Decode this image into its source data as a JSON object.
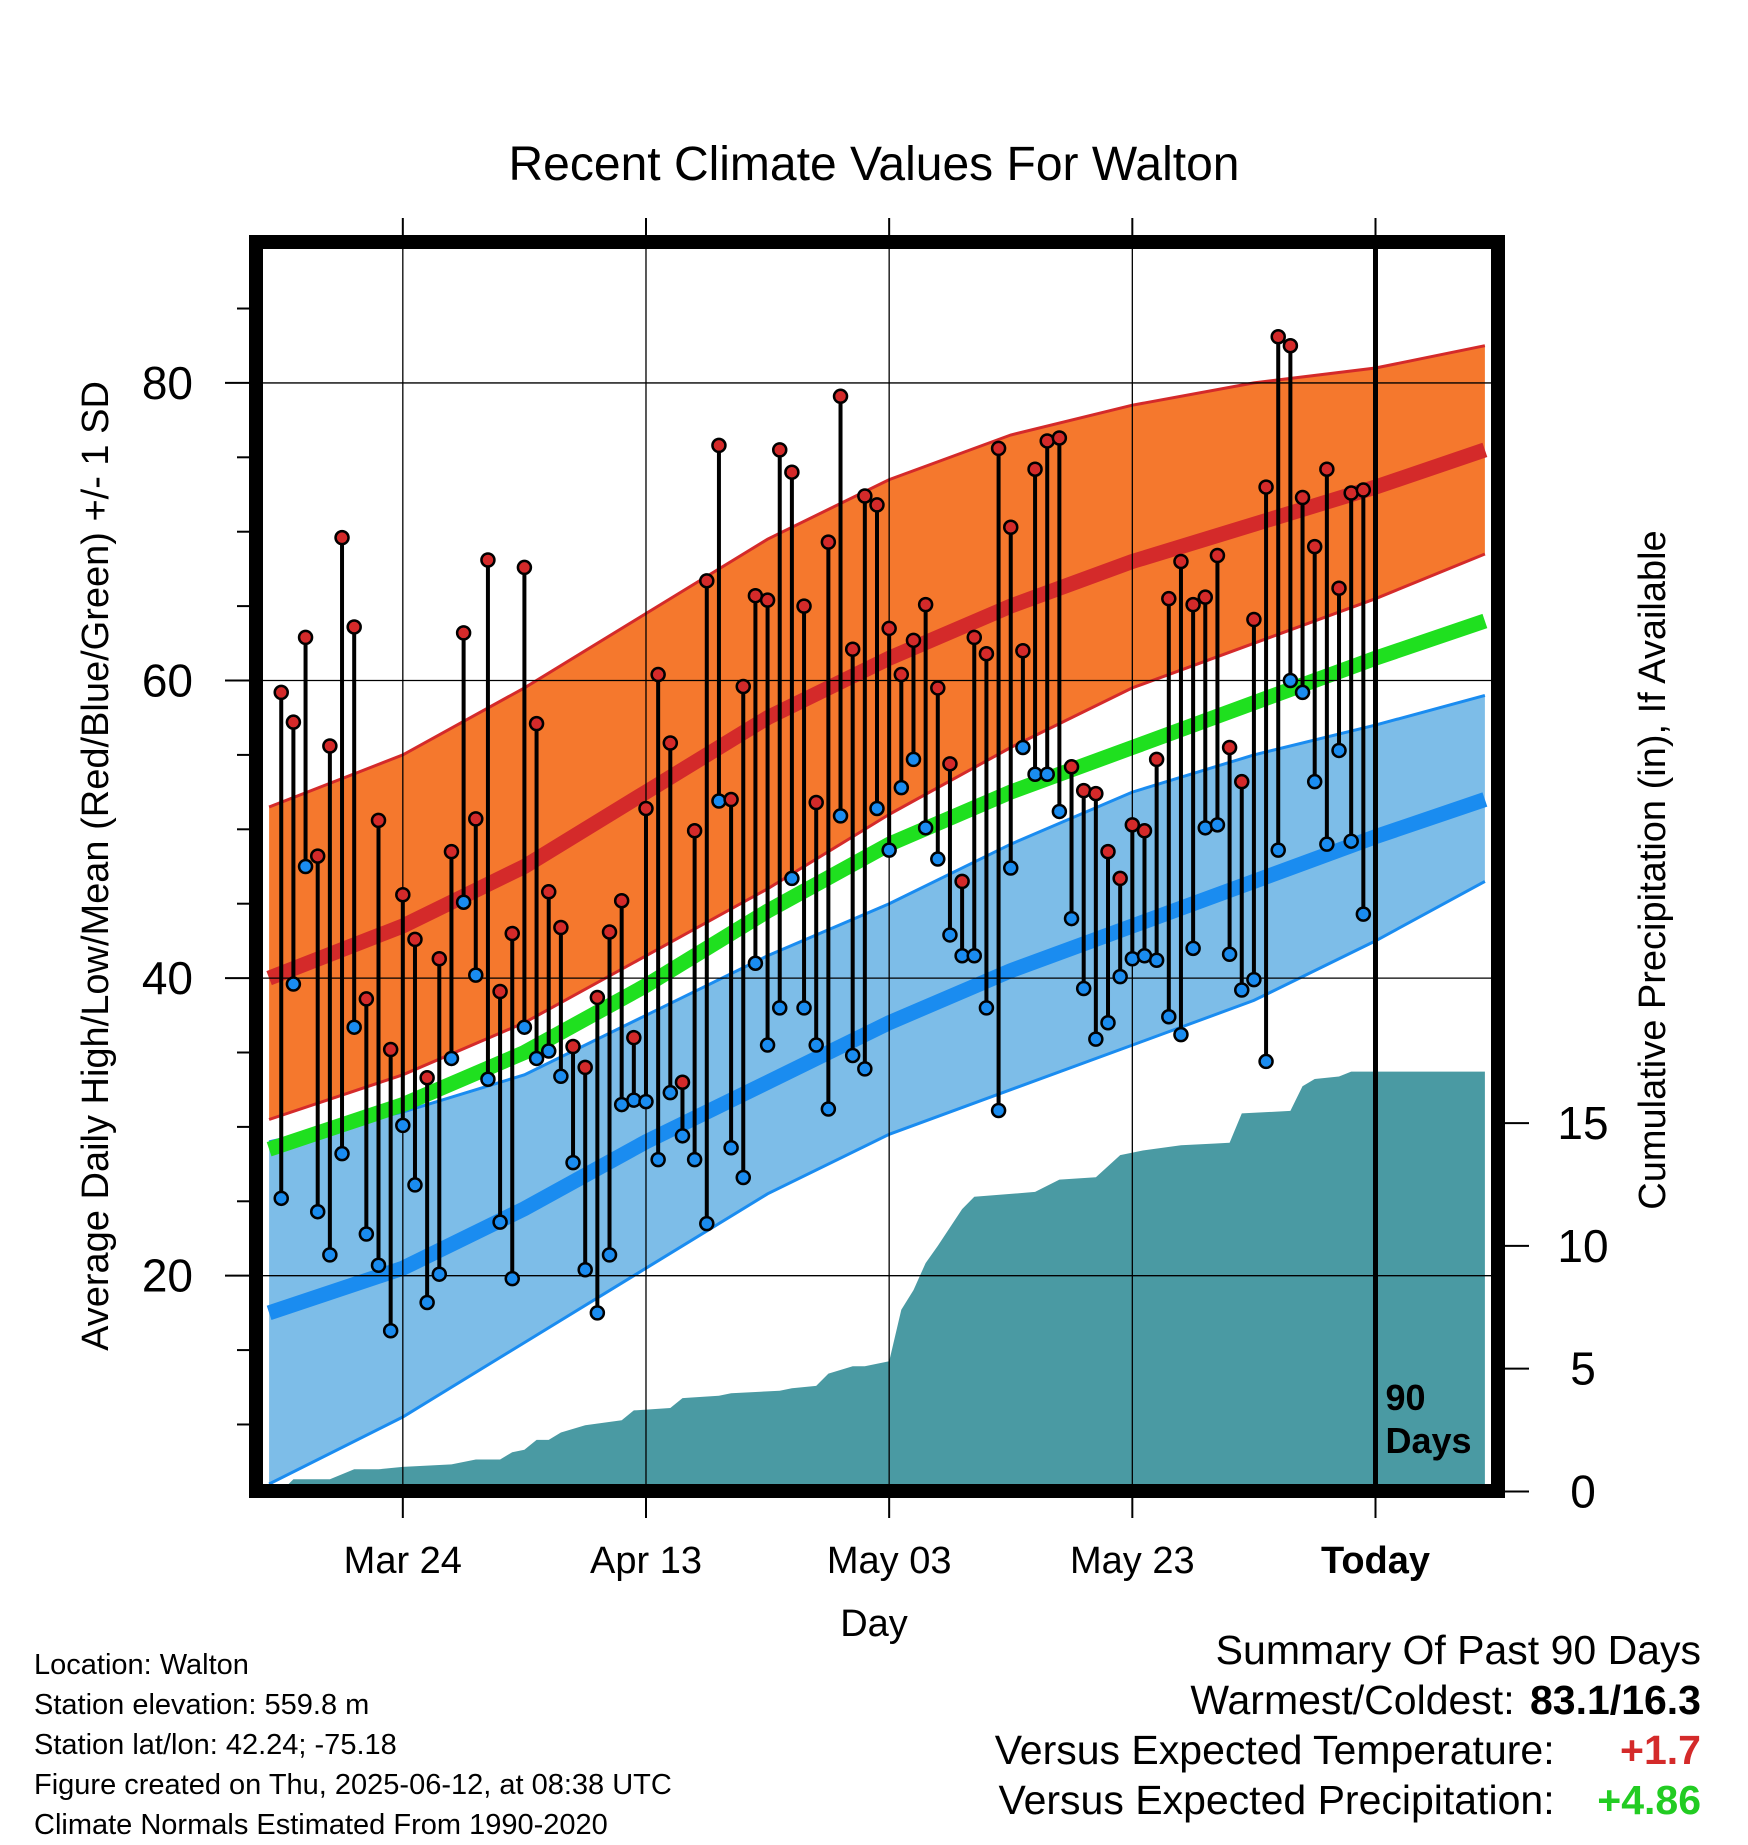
{
  "chart_data": {
    "type": "line",
    "title": "Recent Climate Values For Walton",
    "xlabel": "Day",
    "ylabel": "Average Daily High/Low/Mean (Red/Blue/Green) +/- 1 SD",
    "y2label": "Cumulative Precipitation (in), If Available",
    "ylim": [
      6,
      89
    ],
    "y2lim": [
      0,
      45
    ],
    "yticks": [
      20,
      40,
      60,
      80
    ],
    "y2ticks": [
      0,
      5,
      10,
      15
    ],
    "x_tick_labels": [
      "Mar 24",
      "Apr 13",
      "May 03",
      "May 23",
      "Today"
    ],
    "x_tick_days": [
      -80,
      -60,
      -40,
      -20,
      0
    ],
    "xlim": [
      -91.5,
      9.5
    ],
    "start_date": "2025-03-13",
    "today_marker_label": [
      "90",
      "Days"
    ],
    "grid": true,
    "normals": {
      "high_mean": [
        [
          -91,
          40.0
        ],
        [
          -80,
          43.5
        ],
        [
          -70,
          47.5
        ],
        [
          -60,
          52.5
        ],
        [
          -50,
          57.5
        ],
        [
          -40,
          61.5
        ],
        [
          -30,
          65.0
        ],
        [
          -20,
          68.0
        ],
        [
          -10,
          70.5
        ],
        [
          0,
          73.0
        ],
        [
          9,
          75.5
        ]
      ],
      "high_upper": [
        [
          -91,
          51.5
        ],
        [
          -80,
          55.0
        ],
        [
          -70,
          59.5
        ],
        [
          -60,
          64.5
        ],
        [
          -50,
          69.5
        ],
        [
          -40,
          73.5
        ],
        [
          -30,
          76.5
        ],
        [
          -20,
          78.5
        ],
        [
          -10,
          80.0
        ],
        [
          0,
          81.0
        ],
        [
          9,
          82.5
        ]
      ],
      "high_lower": [
        [
          -91,
          30.5
        ],
        [
          -80,
          33.5
        ],
        [
          -70,
          37.0
        ],
        [
          -60,
          41.5
        ],
        [
          -50,
          46.0
        ],
        [
          -40,
          51.0
        ],
        [
          -30,
          55.5
        ],
        [
          -20,
          59.5
        ],
        [
          -10,
          62.5
        ],
        [
          0,
          65.5
        ],
        [
          9,
          68.5
        ]
      ],
      "mean": [
        [
          -91,
          28.5
        ],
        [
          -80,
          31.5
        ],
        [
          -70,
          35.0
        ],
        [
          -60,
          39.5
        ],
        [
          -50,
          44.5
        ],
        [
          -40,
          49.0
        ],
        [
          -30,
          52.5
        ],
        [
          -20,
          55.5
        ],
        [
          -10,
          58.5
        ],
        [
          0,
          61.5
        ],
        [
          9,
          64.0
        ]
      ],
      "low_mean": [
        [
          -91,
          17.5
        ],
        [
          -80,
          20.5
        ],
        [
          -70,
          24.5
        ],
        [
          -60,
          29.0
        ],
        [
          -50,
          33.0
        ],
        [
          -40,
          37.0
        ],
        [
          -30,
          40.5
        ],
        [
          -20,
          43.5
        ],
        [
          -10,
          46.5
        ],
        [
          0,
          49.5
        ],
        [
          9,
          52.0
        ]
      ],
      "low_upper": [
        [
          -91,
          29.0
        ],
        [
          -80,
          31.0
        ],
        [
          -70,
          33.5
        ],
        [
          -60,
          37.5
        ],
        [
          -50,
          41.5
        ],
        [
          -40,
          45.0
        ],
        [
          -30,
          49.0
        ],
        [
          -20,
          52.5
        ],
        [
          -10,
          55.0
        ],
        [
          0,
          57.0
        ],
        [
          9,
          59.0
        ]
      ],
      "low_lower": [
        [
          -91,
          6.0
        ],
        [
          -80,
          10.5
        ],
        [
          -70,
          15.5
        ],
        [
          -60,
          20.5
        ],
        [
          -50,
          25.5
        ],
        [
          -40,
          29.5
        ],
        [
          -30,
          32.5
        ],
        [
          -20,
          35.5
        ],
        [
          -10,
          38.5
        ],
        [
          0,
          42.5
        ],
        [
          9,
          46.5
        ]
      ]
    },
    "series": [
      {
        "name": "Daily High",
        "color": "#d42a2a",
        "values": [
          59.2,
          57.2,
          62.9,
          48.2,
          55.6,
          69.6,
          63.6,
          38.6,
          50.6,
          35.2,
          45.6,
          42.6,
          33.3,
          41.3,
          48.5,
          63.2,
          50.7,
          68.1,
          39.1,
          43.0,
          67.6,
          57.1,
          45.8,
          43.4,
          35.4,
          34.0,
          38.7,
          43.1,
          45.2,
          36.0,
          51.4,
          60.4,
          55.8,
          33.0,
          49.9,
          66.7,
          75.8,
          52.0,
          59.6,
          65.7,
          65.4,
          75.5,
          74.0,
          65.0,
          51.8,
          69.3,
          79.1,
          62.1,
          72.4,
          71.8,
          63.5,
          60.4,
          62.7,
          65.1,
          59.5,
          54.4,
          46.5,
          62.9,
          61.8,
          75.6,
          70.3,
          62.0,
          74.2,
          76.1,
          76.3,
          54.2,
          52.6,
          52.4,
          48.5,
          46.7,
          50.3,
          49.9,
          54.7,
          65.5,
          68.0,
          65.1,
          65.6,
          68.4,
          55.5,
          53.2,
          64.1,
          73.0,
          83.1,
          82.5,
          72.3,
          69.0,
          74.2,
          66.2,
          72.6,
          72.8
        ]
      },
      {
        "name": "Daily Low",
        "color": "#1a8cf0",
        "values": [
          25.2,
          39.6,
          47.5,
          24.3,
          21.4,
          28.2,
          36.7,
          22.8,
          20.7,
          16.3,
          30.1,
          26.1,
          18.2,
          20.1,
          34.6,
          45.1,
          40.2,
          33.2,
          23.6,
          19.8,
          36.7,
          34.6,
          35.1,
          33.4,
          27.6,
          20.4,
          17.5,
          21.4,
          31.5,
          31.8,
          31.7,
          27.8,
          32.3,
          29.4,
          27.8,
          23.5,
          51.9,
          28.6,
          26.6,
          41.0,
          35.5,
          38.0,
          46.7,
          38.0,
          35.5,
          31.2,
          50.9,
          34.8,
          33.9,
          51.4,
          48.6,
          52.8,
          54.7,
          50.1,
          48.0,
          42.9,
          41.5,
          41.5,
          38.0,
          31.1,
          47.4,
          55.5,
          53.7,
          53.7,
          51.2,
          44.0,
          39.3,
          35.9,
          37.0,
          40.1,
          41.3,
          41.5,
          41.2,
          37.4,
          36.2,
          42.0,
          50.1,
          50.3,
          41.6,
          39.2,
          39.9,
          34.4,
          48.6,
          60.0,
          59.2,
          53.2,
          49.0,
          55.3,
          49.2,
          44.3
        ]
      }
    ],
    "precipitation_cumulative": [
      [
        -91,
        0.0
      ],
      [
        -90,
        0.0
      ],
      [
        -89,
        0.5
      ],
      [
        -86,
        0.5
      ],
      [
        -84,
        0.9
      ],
      [
        -82,
        0.9
      ],
      [
        -80,
        1.0
      ],
      [
        -76,
        1.1
      ],
      [
        -74,
        1.3
      ],
      [
        -72,
        1.3
      ],
      [
        -71,
        1.6
      ],
      [
        -70,
        1.7
      ],
      [
        -69,
        2.1
      ],
      [
        -68,
        2.1
      ],
      [
        -67,
        2.4
      ],
      [
        -65,
        2.7
      ],
      [
        -62,
        2.9
      ],
      [
        -61,
        3.3
      ],
      [
        -58,
        3.4
      ],
      [
        -57,
        3.8
      ],
      [
        -54,
        3.9
      ],
      [
        -53,
        4.0
      ],
      [
        -49,
        4.1
      ],
      [
        -48,
        4.2
      ],
      [
        -46,
        4.3
      ],
      [
        -45,
        4.8
      ],
      [
        -43,
        5.1
      ],
      [
        -42,
        5.1
      ],
      [
        -40,
        5.3
      ],
      [
        -39,
        7.4
      ],
      [
        -38,
        8.2
      ],
      [
        -37,
        9.3
      ],
      [
        -36,
        10.0
      ],
      [
        -34,
        11.5
      ],
      [
        -33,
        12.0
      ],
      [
        -28,
        12.2
      ],
      [
        -26,
        12.7
      ],
      [
        -23,
        12.8
      ],
      [
        -21,
        13.7
      ],
      [
        -19,
        13.9
      ],
      [
        -16,
        14.1
      ],
      [
        -12,
        14.2
      ],
      [
        -11,
        15.4
      ],
      [
        -7,
        15.5
      ],
      [
        -6,
        16.5
      ],
      [
        -5,
        16.8
      ],
      [
        -3,
        16.9
      ],
      [
        -2,
        17.1
      ],
      [
        0,
        17.1
      ],
      [
        9,
        17.1
      ]
    ],
    "precip_ticks_plot_value": [
      [
        0,
        5.5
      ],
      [
        5,
        13.75
      ],
      [
        10,
        22.0
      ],
      [
        15,
        30.25
      ]
    ]
  },
  "info": {
    "location": "Location: Walton",
    "elevation": "Station elevation: 559.8 m",
    "latlon": "Station lat/lon: 42.24; -75.18",
    "created": "Figure created on Thu, 2025-06-12, at 08:38 UTC",
    "normals": "Climate Normals Estimated From 1990-2020"
  },
  "summary": {
    "title": "Summary Of Past 90 Days",
    "warm_cold_label": "Warmest/Coldest:",
    "warm_cold_value": "83.1/16.3",
    "temp_label": "Versus Expected Temperature:",
    "temp_value": "+1.7",
    "temp_color": "#d42a2a",
    "precip_label": "Versus Expected Precipitation:",
    "precip_value": "+4.86",
    "precip_color": "#22cc22"
  },
  "colors": {
    "high_band": "#f5782d",
    "high_line": "#d42a2a",
    "mean_line": "#1fe01f",
    "low_band": "#7dbde8",
    "low_line": "#1a8cf0",
    "precip": "#4a9aa3"
  }
}
